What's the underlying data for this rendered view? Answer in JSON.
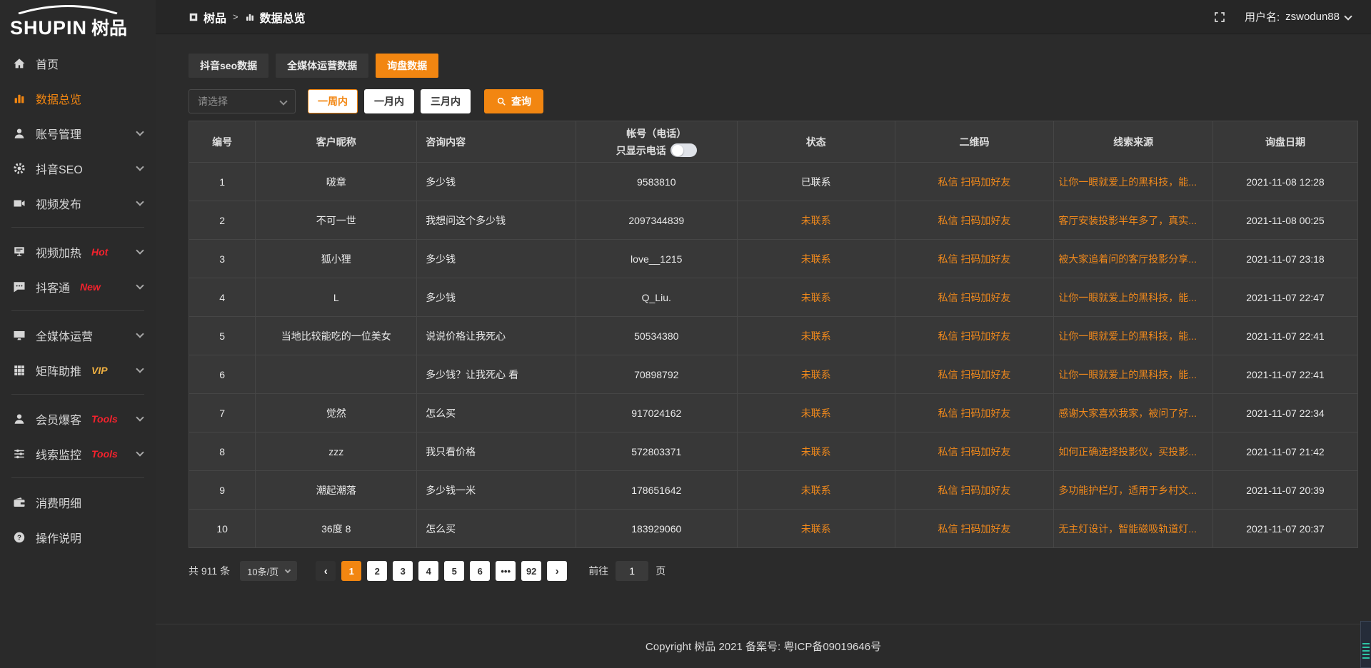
{
  "colors": {
    "accent_orange": "#F28611",
    "link_orange": "#F0891C",
    "hot_red": "#F5222D",
    "vip_gold": "#EFB041",
    "page_background": "#2B2B2B",
    "table_background": "#383838"
  },
  "logo": {
    "en": "SHUPIN",
    "cn": "树品"
  },
  "topbar": {
    "breadcrumb_root": "树品",
    "breadcrumb_sep": ">",
    "breadcrumb_current": "数据总览",
    "username_label": "用户名:",
    "username": "zswodun88"
  },
  "sidebar": {
    "items": [
      {
        "key": "home",
        "icon": "home-icon",
        "label": "首页"
      },
      {
        "key": "data-overview",
        "icon": "bar-chart-icon",
        "label": "数据总览",
        "active": true
      },
      {
        "key": "account-management",
        "icon": "user-icon",
        "label": "账号管理",
        "arrow": true
      },
      {
        "key": "douyin-seo",
        "icon": "gear-icon",
        "label": "抖音SEO",
        "arrow": true
      },
      {
        "key": "video-publish",
        "icon": "video-icon",
        "label": "视频发布",
        "arrow": true,
        "divider_after": true
      },
      {
        "key": "video-heat",
        "icon": "screen-icon",
        "label": "视频加热",
        "badge": "Hot",
        "badge_color": "#F5222D",
        "arrow": true
      },
      {
        "key": "douketong",
        "icon": "chat-icon",
        "label": "抖客通",
        "badge": "New",
        "badge_color": "#F5222D",
        "arrow": true,
        "divider_after": true
      },
      {
        "key": "omni-media",
        "icon": "monitor-icon",
        "label": "全媒体运营",
        "arrow": true
      },
      {
        "key": "matrix-boost",
        "icon": "grid-icon",
        "label": "矩阵助推",
        "badge": "VIP",
        "badge_color": "#EFB041",
        "arrow": true,
        "divider_after": true
      },
      {
        "key": "member-baoke",
        "icon": "person-icon",
        "label": "会员爆客",
        "badge": "Tools",
        "badge_color": "#F5222D",
        "arrow": true
      },
      {
        "key": "clue-monitor",
        "icon": "sliders-icon",
        "label": "线索监控",
        "badge": "Tools",
        "badge_color": "#F5222D",
        "arrow": true,
        "divider_after": true
      },
      {
        "key": "consumption-detail",
        "icon": "wallet-icon",
        "label": "消费明细"
      },
      {
        "key": "operation-guide",
        "icon": "question-icon",
        "label": "操作说明"
      }
    ]
  },
  "tabs": [
    {
      "key": "douyin-seo-data",
      "label": "抖音seo数据"
    },
    {
      "key": "omni-media-data",
      "label": "全媒体运营数据"
    },
    {
      "key": "inquiry-data",
      "label": "询盘数据",
      "active": true
    }
  ],
  "filter": {
    "select_placeholder": "请选择",
    "ranges": [
      {
        "label": "一周内",
        "active": true
      },
      {
        "label": "一月内"
      },
      {
        "label": "三月内"
      }
    ],
    "query_label": "查询"
  },
  "table": {
    "columns": [
      "编号",
      "客户昵称",
      "咨询内容",
      "帐号（电话）",
      "状态",
      "二维码",
      "线索来源",
      "询盘日期"
    ],
    "phone_toggle_label": "只显示电话",
    "phone_toggle_on": false,
    "rows": [
      {
        "no": "1",
        "nickname": "啵章",
        "content": "多少钱",
        "account": "9583810",
        "status": "已联系",
        "contacted": true,
        "qr": "私信 扫码加好友",
        "source": "让你一眼就爱上的黑科技，能...",
        "date": "2021-11-08 12:28"
      },
      {
        "no": "2",
        "nickname": "不可一世",
        "content": "我想问这个多少钱",
        "account": "2097344839",
        "status": "未联系",
        "contacted": false,
        "qr": "私信 扫码加好友",
        "source": "客厅安装投影半年多了，真实...",
        "date": "2021-11-08 00:25"
      },
      {
        "no": "3",
        "nickname": "狐小狸",
        "content": "多少钱",
        "account": "love__1215",
        "status": "未联系",
        "contacted": false,
        "qr": "私信 扫码加好友",
        "source": "被大家追着问的客厅投影分享...",
        "date": "2021-11-07 23:18"
      },
      {
        "no": "4",
        "nickname": "L",
        "content": "多少钱",
        "account": "Q_Liu.",
        "status": "未联系",
        "contacted": false,
        "qr": "私信 扫码加好友",
        "source": "让你一眼就爱上的黑科技，能...",
        "date": "2021-11-07 22:47"
      },
      {
        "no": "5",
        "nickname": "当地比较能吃的一位美女",
        "content": "说说价格让我死心",
        "account": "50534380",
        "status": "未联系",
        "contacted": false,
        "qr": "私信 扫码加好友",
        "source": "让你一眼就爱上的黑科技，能...",
        "date": "2021-11-07 22:41"
      },
      {
        "no": "6",
        "nickname": "",
        "content": "多少钱？让我死心 看",
        "account": "70898792",
        "status": "未联系",
        "contacted": false,
        "qr": "私信 扫码加好友",
        "source": "让你一眼就爱上的黑科技，能...",
        "date": "2021-11-07 22:41"
      },
      {
        "no": "7",
        "nickname": "觉然",
        "content": "怎么买",
        "account": "917024162",
        "status": "未联系",
        "contacted": false,
        "qr": "私信 扫码加好友",
        "source": "感谢大家喜欢我家，被问了好...",
        "date": "2021-11-07 22:34"
      },
      {
        "no": "8",
        "nickname": "zzz",
        "content": "我只看价格",
        "account": "572803371",
        "status": "未联系",
        "contacted": false,
        "qr": "私信 扫码加好友",
        "source": "如何正确选择投影仪，买投影...",
        "date": "2021-11-07 21:42"
      },
      {
        "no": "9",
        "nickname": "潮起潮落",
        "content": "多少钱一米",
        "account": "178651642",
        "status": "未联系",
        "contacted": false,
        "qr": "私信 扫码加好友",
        "source": "多功能护栏灯，适用于乡村文...",
        "date": "2021-11-07 20:39"
      },
      {
        "no": "10",
        "nickname": "36度 8",
        "content": "怎么买",
        "account": "183929060",
        "status": "未联系",
        "contacted": false,
        "qr": "私信 扫码加好友",
        "source": "无主灯设计，智能磁吸轨道灯...",
        "date": "2021-11-07 20:37"
      }
    ]
  },
  "pagination": {
    "total_label": "共 911 条",
    "page_size_label": "10条/页",
    "prev_label": "‹",
    "next_label": "›",
    "pages": [
      "1",
      "2",
      "3",
      "4",
      "5",
      "6",
      "...",
      "92"
    ],
    "active_page": "1",
    "goto_label": "前往",
    "goto_value": "1",
    "goto_unit": "页"
  },
  "footer": {
    "copyright": "Copyright 树品 2021 备案号: 粤ICP备09019646号"
  }
}
